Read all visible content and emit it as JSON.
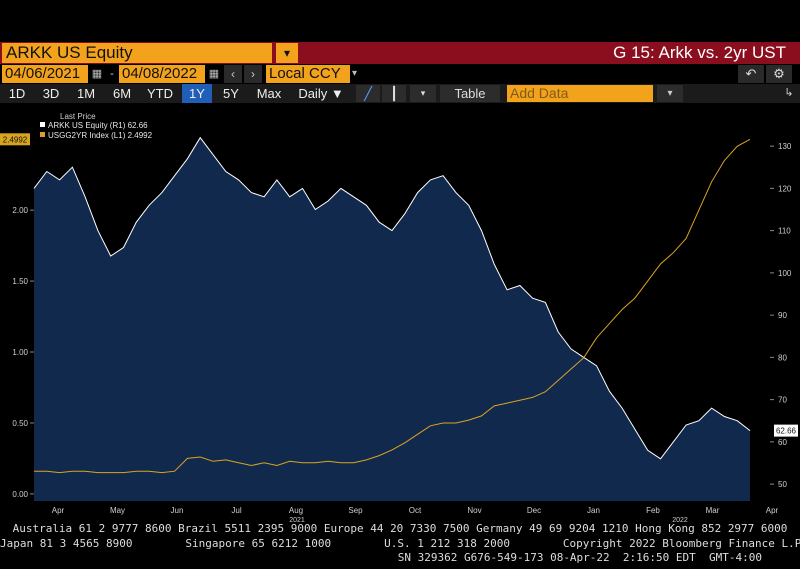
{
  "header": {
    "ticker": "ARKK US Equity",
    "dropdown_icon": "filter-dropdown-icon",
    "chart_name": "G 15: Arkk vs. 2yr UST"
  },
  "toolbar": {
    "start_date": "04/06/2021",
    "end_date": "04/08/2022",
    "date_sep": "-",
    "currency": "Local CCY",
    "prev_icon": "chevron-left-icon",
    "next_icon": "chevron-right-icon",
    "undo_icon": "undo-icon",
    "settings_icon": "gear-icon"
  },
  "ranges": {
    "items": [
      "1D",
      "3D",
      "1M",
      "6M",
      "YTD",
      "1Y",
      "5Y",
      "Max"
    ],
    "active": "1Y",
    "frequency": "Daily ▼",
    "table_label": "Table",
    "add_data_placeholder": "Add Data"
  },
  "legend": {
    "title": "Last Price",
    "items": [
      {
        "label": "ARKK US Equity  (R1) 62.66",
        "color": "#ffffff"
      },
      {
        "label": "USGG2YR Index  (L1) 2.4992",
        "color": "#d9a520"
      }
    ]
  },
  "footer": {
    "line1": "Australia 61 2 9777 8600 Brazil 5511 2395 9000 Europe 44 20 7330 7500 Germany 49 69 9204 1210 Hong Kong 852 2977 6000",
    "line2": "Japan 81 3 4565 8900        Singapore 65 6212 1000        U.S. 1 212 318 2000        Copyright 2022 Bloomberg Finance L.P.",
    "line3": "SN 329362 G676-549-173 08-Apr-22  2:16:50 EDT  GMT-4:00"
  },
  "colors": {
    "accent": "#f3a21b",
    "header_bar": "#8a0e1e",
    "area_fill": "#12294e",
    "equity_line": "#ffffff",
    "yield_line": "#d9a520",
    "active_range": "#1f5fb8"
  },
  "chart_data": {
    "type": "line",
    "x_ticks": [
      "Apr",
      "May",
      "Jun",
      "Jul",
      "Aug",
      "Sep",
      "Oct",
      "Nov",
      "Dec",
      "Jan",
      "Feb",
      "Mar",
      "Apr"
    ],
    "year_labels": [
      "2021",
      "2022"
    ],
    "left_axis": {
      "ticks": [
        "0.00",
        "0.50",
        "1.00",
        "1.50",
        "2.00"
      ],
      "ylim": [
        -0.05,
        2.6
      ]
    },
    "right_axis": {
      "ticks": [
        "50",
        "60",
        "70",
        "80",
        "90",
        "100",
        "110",
        "120",
        "130"
      ],
      "ylim": [
        46,
        135
      ]
    },
    "last_value_labels": {
      "left": "2.4992",
      "right": "62.66"
    },
    "grid": false,
    "series": [
      {
        "name": "ARKK US Equity",
        "axis": "right",
        "style": "area",
        "values": [
          120,
          124,
          122,
          125,
          118,
          110,
          104,
          106,
          112,
          116,
          119,
          123,
          127,
          132,
          128,
          124,
          122,
          119,
          118,
          122,
          118,
          120,
          115,
          117,
          120,
          118,
          116,
          112,
          110,
          114,
          119,
          122,
          123,
          119,
          116,
          110,
          102,
          96,
          97,
          94,
          93,
          86,
          82,
          80,
          78,
          72,
          68,
          63,
          58,
          56,
          60,
          64,
          65,
          68,
          66,
          65,
          62.66
        ]
      },
      {
        "name": "USGG2YR Index",
        "axis": "left",
        "style": "line",
        "values": [
          0.16,
          0.16,
          0.15,
          0.16,
          0.16,
          0.15,
          0.15,
          0.15,
          0.16,
          0.16,
          0.15,
          0.16,
          0.25,
          0.26,
          0.23,
          0.24,
          0.22,
          0.2,
          0.22,
          0.2,
          0.23,
          0.22,
          0.22,
          0.23,
          0.22,
          0.22,
          0.24,
          0.27,
          0.31,
          0.36,
          0.42,
          0.48,
          0.5,
          0.5,
          0.52,
          0.55,
          0.62,
          0.64,
          0.66,
          0.68,
          0.72,
          0.8,
          0.88,
          0.96,
          1.1,
          1.2,
          1.3,
          1.38,
          1.5,
          1.62,
          1.7,
          1.8,
          2.0,
          2.2,
          2.35,
          2.45,
          2.4992
        ]
      }
    ]
  }
}
